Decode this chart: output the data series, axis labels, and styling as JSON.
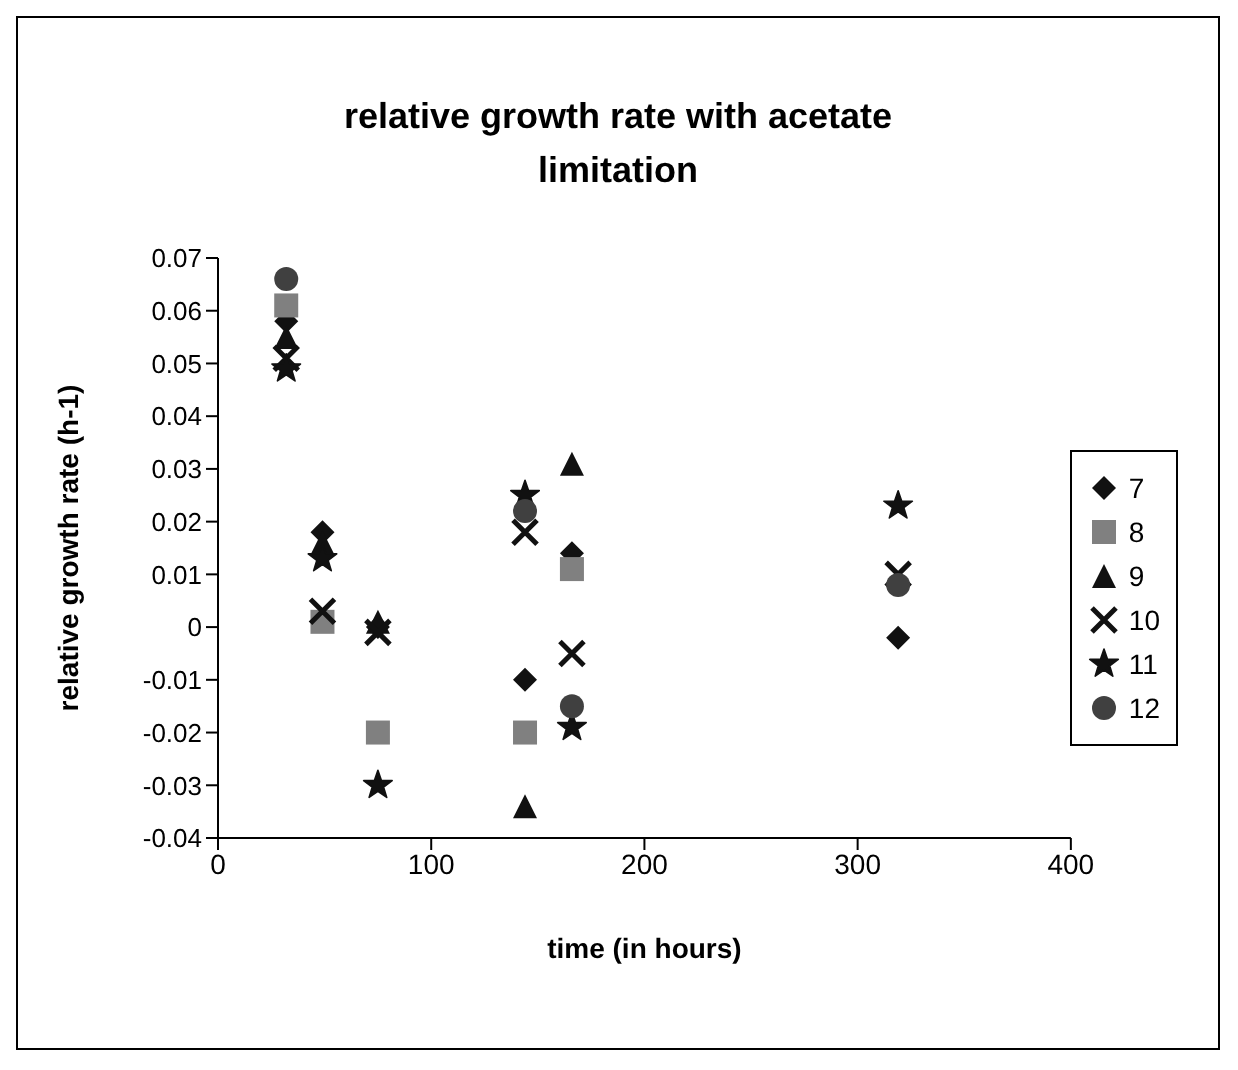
{
  "chart_data": {
    "type": "scatter",
    "title": "relative growth rate with acetate limitation",
    "xlabel": "time (in hours)",
    "ylabel": "relative growth rate (h-1)",
    "x": [
      32,
      49,
      75,
      144,
      166,
      319
    ],
    "series": [
      {
        "name": "7",
        "color": "#111111",
        "marker": "diamond",
        "values": [
          0.058,
          0.018,
          0,
          -0.01,
          0.014,
          -0.002
        ]
      },
      {
        "name": "8",
        "color": "#808080",
        "marker": "square",
        "values": [
          0.061,
          0.001,
          -0.02,
          -0.02,
          0.011,
          null
        ]
      },
      {
        "name": "9",
        "color": "#111111",
        "marker": "triangle",
        "values": [
          0.055,
          0.016,
          0.001,
          -0.034,
          0.031,
          null
        ]
      },
      {
        "name": "10",
        "color": "#111111",
        "marker": "cross",
        "values": [
          0.051,
          0.003,
          -0.001,
          0.018,
          -0.005,
          0.01
        ]
      },
      {
        "name": "11",
        "color": "#111111",
        "marker": "star",
        "values": [
          0.049,
          0.013,
          -0.03,
          0.025,
          -0.019,
          0.023
        ]
      },
      {
        "name": "12",
        "color": "#404040",
        "marker": "circle",
        "values": [
          0.066,
          null,
          null,
          0.022,
          -0.015,
          0.008
        ]
      }
    ],
    "xlim": [
      0,
      400
    ],
    "xticks": [
      0,
      100,
      200,
      300,
      400
    ],
    "ylim": [
      -0.04,
      0.07
    ],
    "yticks": [
      -0.04,
      -0.03,
      -0.02,
      -0.01,
      0,
      0.01,
      0.02,
      0.03,
      0.04,
      0.05,
      0.06,
      0.07
    ],
    "grid": false,
    "legend": "right"
  }
}
